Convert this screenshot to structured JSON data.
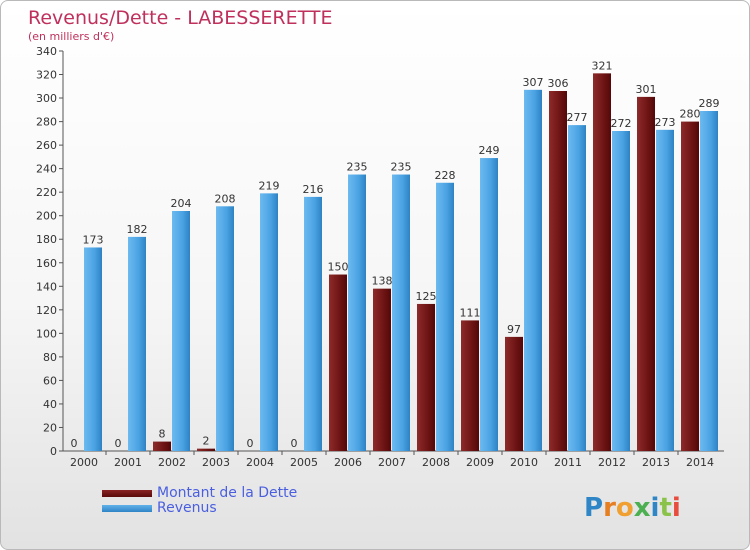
{
  "title": "Revenus/Dette - LABESSERETTE",
  "subtitle": "(en milliers d'€)",
  "logo_text": "Proxiti",
  "colors": {
    "title": "#c0305c",
    "dette": "#7a1b1b",
    "revenus": "#3f9ee0",
    "legend_text": "#4a5fe0"
  },
  "chart_data": {
    "type": "bar",
    "title": "Revenus/Dette - LABESSERETTE",
    "subtitle": "(en milliers d'€)",
    "categories": [
      "2000",
      "2001",
      "2002",
      "2003",
      "2004",
      "2005",
      "2006",
      "2007",
      "2008",
      "2009",
      "2010",
      "2011",
      "2012",
      "2013",
      "2014"
    ],
    "series": [
      {
        "name": "Montant de la Dette",
        "values": [
          0,
          0,
          8,
          2,
          0,
          0,
          150,
          138,
          125,
          111,
          97,
          306,
          321,
          301,
          280
        ]
      },
      {
        "name": "Revenus",
        "values": [
          173,
          182,
          204,
          208,
          219,
          216,
          235,
          235,
          228,
          249,
          307,
          277,
          272,
          273,
          289
        ]
      }
    ],
    "yticks": [
      0,
      20,
      40,
      60,
      80,
      100,
      120,
      140,
      160,
      180,
      200,
      220,
      240,
      260,
      280,
      300,
      320,
      340
    ],
    "ylim": [
      0,
      340
    ],
    "grid": false,
    "legend_position": "bottom-left"
  }
}
